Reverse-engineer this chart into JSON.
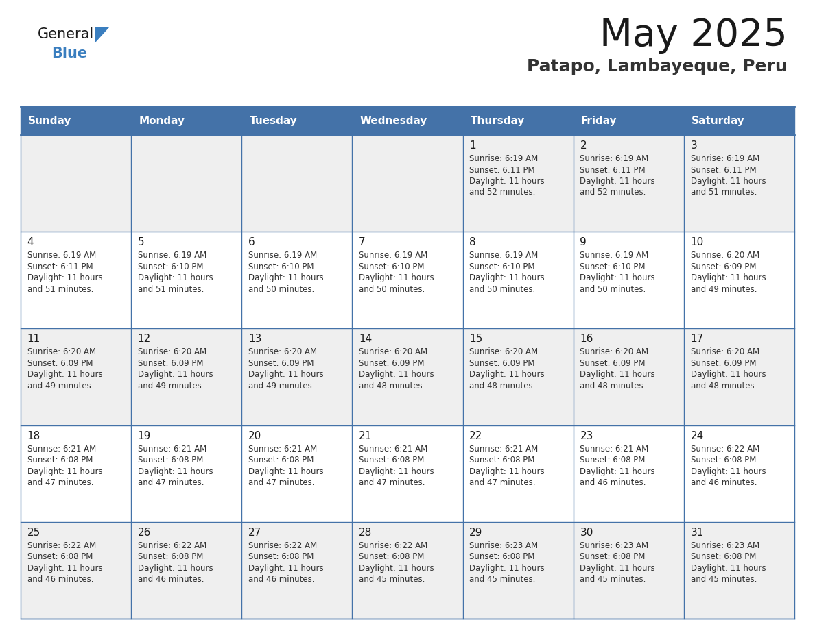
{
  "title": "May 2025",
  "subtitle": "Patapo, Lambayeque, Peru",
  "days_of_week": [
    "Sunday",
    "Monday",
    "Tuesday",
    "Wednesday",
    "Thursday",
    "Friday",
    "Saturday"
  ],
  "header_bg": "#4472a8",
  "header_text": "#ffffff",
  "cell_bg_even": "#efefef",
  "cell_bg_odd": "#ffffff",
  "cell_text": "#333333",
  "day_number_color": "#1a1a1a",
  "grid_color": "#4472a8",
  "title_color": "#1a1a1a",
  "subtitle_color": "#333333",
  "logo_blue_color": "#3a7ebf",
  "weeks": [
    {
      "row": 0,
      "days": [
        {
          "day": null,
          "col": 0
        },
        {
          "day": null,
          "col": 1
        },
        {
          "day": null,
          "col": 2
        },
        {
          "day": null,
          "col": 3
        },
        {
          "day": 1,
          "col": 4,
          "sunrise": "6:19 AM",
          "sunset": "6:11 PM",
          "daylight_h": "11 hours",
          "daylight_m": "and 52 minutes."
        },
        {
          "day": 2,
          "col": 5,
          "sunrise": "6:19 AM",
          "sunset": "6:11 PM",
          "daylight_h": "11 hours",
          "daylight_m": "and 52 minutes."
        },
        {
          "day": 3,
          "col": 6,
          "sunrise": "6:19 AM",
          "sunset": "6:11 PM",
          "daylight_h": "11 hours",
          "daylight_m": "and 51 minutes."
        }
      ]
    },
    {
      "row": 1,
      "days": [
        {
          "day": 4,
          "col": 0,
          "sunrise": "6:19 AM",
          "sunset": "6:11 PM",
          "daylight_h": "11 hours",
          "daylight_m": "and 51 minutes."
        },
        {
          "day": 5,
          "col": 1,
          "sunrise": "6:19 AM",
          "sunset": "6:10 PM",
          "daylight_h": "11 hours",
          "daylight_m": "and 51 minutes."
        },
        {
          "day": 6,
          "col": 2,
          "sunrise": "6:19 AM",
          "sunset": "6:10 PM",
          "daylight_h": "11 hours",
          "daylight_m": "and 50 minutes."
        },
        {
          "day": 7,
          "col": 3,
          "sunrise": "6:19 AM",
          "sunset": "6:10 PM",
          "daylight_h": "11 hours",
          "daylight_m": "and 50 minutes."
        },
        {
          "day": 8,
          "col": 4,
          "sunrise": "6:19 AM",
          "sunset": "6:10 PM",
          "daylight_h": "11 hours",
          "daylight_m": "and 50 minutes."
        },
        {
          "day": 9,
          "col": 5,
          "sunrise": "6:19 AM",
          "sunset": "6:10 PM",
          "daylight_h": "11 hours",
          "daylight_m": "and 50 minutes."
        },
        {
          "day": 10,
          "col": 6,
          "sunrise": "6:20 AM",
          "sunset": "6:09 PM",
          "daylight_h": "11 hours",
          "daylight_m": "and 49 minutes."
        }
      ]
    },
    {
      "row": 2,
      "days": [
        {
          "day": 11,
          "col": 0,
          "sunrise": "6:20 AM",
          "sunset": "6:09 PM",
          "daylight_h": "11 hours",
          "daylight_m": "and 49 minutes."
        },
        {
          "day": 12,
          "col": 1,
          "sunrise": "6:20 AM",
          "sunset": "6:09 PM",
          "daylight_h": "11 hours",
          "daylight_m": "and 49 minutes."
        },
        {
          "day": 13,
          "col": 2,
          "sunrise": "6:20 AM",
          "sunset": "6:09 PM",
          "daylight_h": "11 hours",
          "daylight_m": "and 49 minutes."
        },
        {
          "day": 14,
          "col": 3,
          "sunrise": "6:20 AM",
          "sunset": "6:09 PM",
          "daylight_h": "11 hours",
          "daylight_m": "and 48 minutes."
        },
        {
          "day": 15,
          "col": 4,
          "sunrise": "6:20 AM",
          "sunset": "6:09 PM",
          "daylight_h": "11 hours",
          "daylight_m": "and 48 minutes."
        },
        {
          "day": 16,
          "col": 5,
          "sunrise": "6:20 AM",
          "sunset": "6:09 PM",
          "daylight_h": "11 hours",
          "daylight_m": "and 48 minutes."
        },
        {
          "day": 17,
          "col": 6,
          "sunrise": "6:20 AM",
          "sunset": "6:09 PM",
          "daylight_h": "11 hours",
          "daylight_m": "and 48 minutes."
        }
      ]
    },
    {
      "row": 3,
      "days": [
        {
          "day": 18,
          "col": 0,
          "sunrise": "6:21 AM",
          "sunset": "6:08 PM",
          "daylight_h": "11 hours",
          "daylight_m": "and 47 minutes."
        },
        {
          "day": 19,
          "col": 1,
          "sunrise": "6:21 AM",
          "sunset": "6:08 PM",
          "daylight_h": "11 hours",
          "daylight_m": "and 47 minutes."
        },
        {
          "day": 20,
          "col": 2,
          "sunrise": "6:21 AM",
          "sunset": "6:08 PM",
          "daylight_h": "11 hours",
          "daylight_m": "and 47 minutes."
        },
        {
          "day": 21,
          "col": 3,
          "sunrise": "6:21 AM",
          "sunset": "6:08 PM",
          "daylight_h": "11 hours",
          "daylight_m": "and 47 minutes."
        },
        {
          "day": 22,
          "col": 4,
          "sunrise": "6:21 AM",
          "sunset": "6:08 PM",
          "daylight_h": "11 hours",
          "daylight_m": "and 47 minutes."
        },
        {
          "day": 23,
          "col": 5,
          "sunrise": "6:21 AM",
          "sunset": "6:08 PM",
          "daylight_h": "11 hours",
          "daylight_m": "and 46 minutes."
        },
        {
          "day": 24,
          "col": 6,
          "sunrise": "6:22 AM",
          "sunset": "6:08 PM",
          "daylight_h": "11 hours",
          "daylight_m": "and 46 minutes."
        }
      ]
    },
    {
      "row": 4,
      "days": [
        {
          "day": 25,
          "col": 0,
          "sunrise": "6:22 AM",
          "sunset": "6:08 PM",
          "daylight_h": "11 hours",
          "daylight_m": "and 46 minutes."
        },
        {
          "day": 26,
          "col": 1,
          "sunrise": "6:22 AM",
          "sunset": "6:08 PM",
          "daylight_h": "11 hours",
          "daylight_m": "and 46 minutes."
        },
        {
          "day": 27,
          "col": 2,
          "sunrise": "6:22 AM",
          "sunset": "6:08 PM",
          "daylight_h": "11 hours",
          "daylight_m": "and 46 minutes."
        },
        {
          "day": 28,
          "col": 3,
          "sunrise": "6:22 AM",
          "sunset": "6:08 PM",
          "daylight_h": "11 hours",
          "daylight_m": "and 45 minutes."
        },
        {
          "day": 29,
          "col": 4,
          "sunrise": "6:23 AM",
          "sunset": "6:08 PM",
          "daylight_h": "11 hours",
          "daylight_m": "and 45 minutes."
        },
        {
          "day": 30,
          "col": 5,
          "sunrise": "6:23 AM",
          "sunset": "6:08 PM",
          "daylight_h": "11 hours",
          "daylight_m": "and 45 minutes."
        },
        {
          "day": 31,
          "col": 6,
          "sunrise": "6:23 AM",
          "sunset": "6:08 PM",
          "daylight_h": "11 hours",
          "daylight_m": "and 45 minutes."
        }
      ]
    }
  ]
}
